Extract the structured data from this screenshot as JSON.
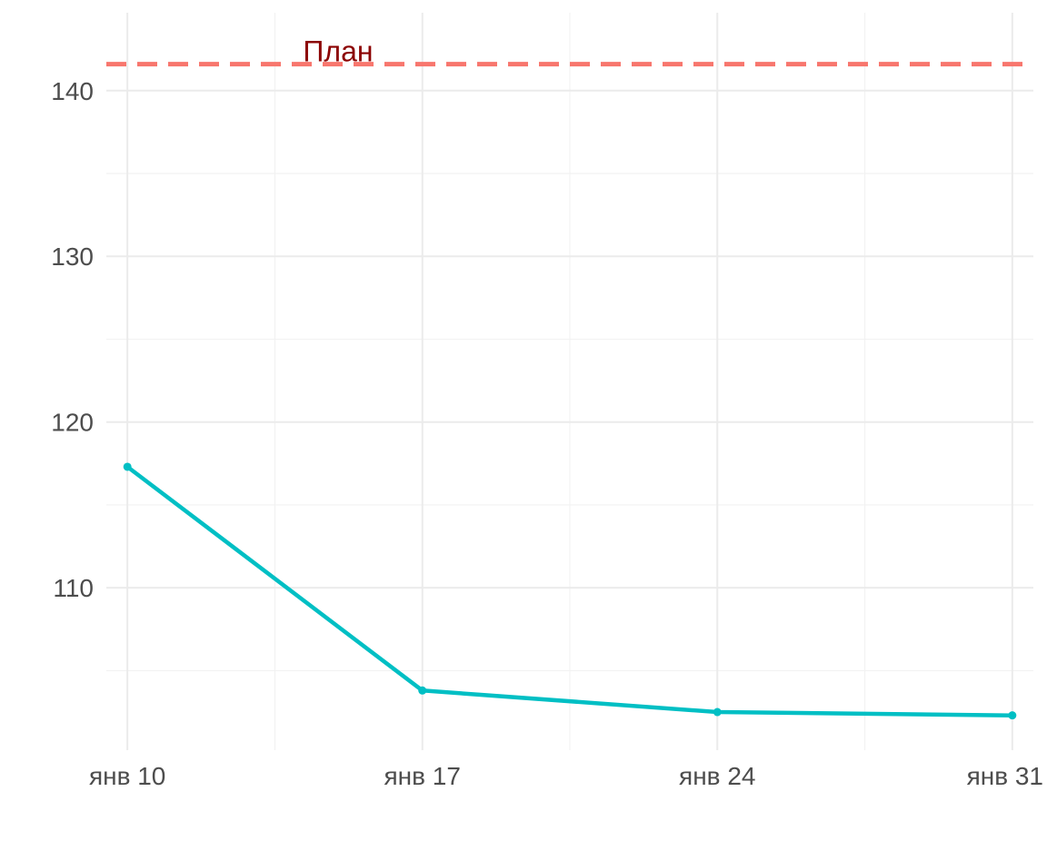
{
  "chart_data": {
    "type": "line",
    "title": "",
    "xlabel": "",
    "ylabel": "",
    "x": [
      "2024-01-10",
      "2024-01-17",
      "2024-01-24",
      "2024-01-31"
    ],
    "x_tick_labels": [
      "янв 10",
      "янв 17",
      "янв 24",
      "янв 31"
    ],
    "series": [
      {
        "values": [
          117.3,
          103.8,
          102.5,
          102.3
        ],
        "color": "#00BFC4"
      }
    ],
    "ylim": [
      100.2,
      144.7
    ],
    "y_ticks": [
      110,
      120,
      130,
      140
    ],
    "reference_line": {
      "value": 141.6,
      "label": "План",
      "line_color": "#F8766D",
      "label_color": "#8B0000",
      "style": "dashed"
    },
    "grid": true,
    "legend": "none"
  }
}
